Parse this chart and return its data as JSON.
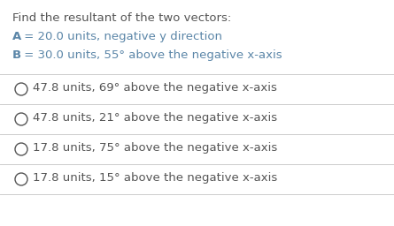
{
  "title": "Find the resultant of the two vectors:",
  "line1_bold": "A",
  "line1_rest": " = 20.0 units, negative y direction",
  "line2_bold": "B",
  "line2_rest": " = 30.0 units, 55° above the negative x-axis",
  "options": [
    "47.8 units, 69° above the negative x-axis",
    "47.8 units, 21° above the negative x-axis",
    "17.8 units, 75° above the negative x-axis",
    "17.8 units, 15° above the negative x-axis"
  ],
  "bg_color": "#ffffff",
  "title_color": "#555555",
  "label_color": "#5b86a8",
  "option_color": "#555555",
  "separator_color": "#cccccc",
  "title_fontsize": 9.5,
  "label_fontsize": 9.5,
  "option_fontsize": 9.5,
  "figwidth": 4.45,
  "figheight": 2.56,
  "dpi": 100
}
